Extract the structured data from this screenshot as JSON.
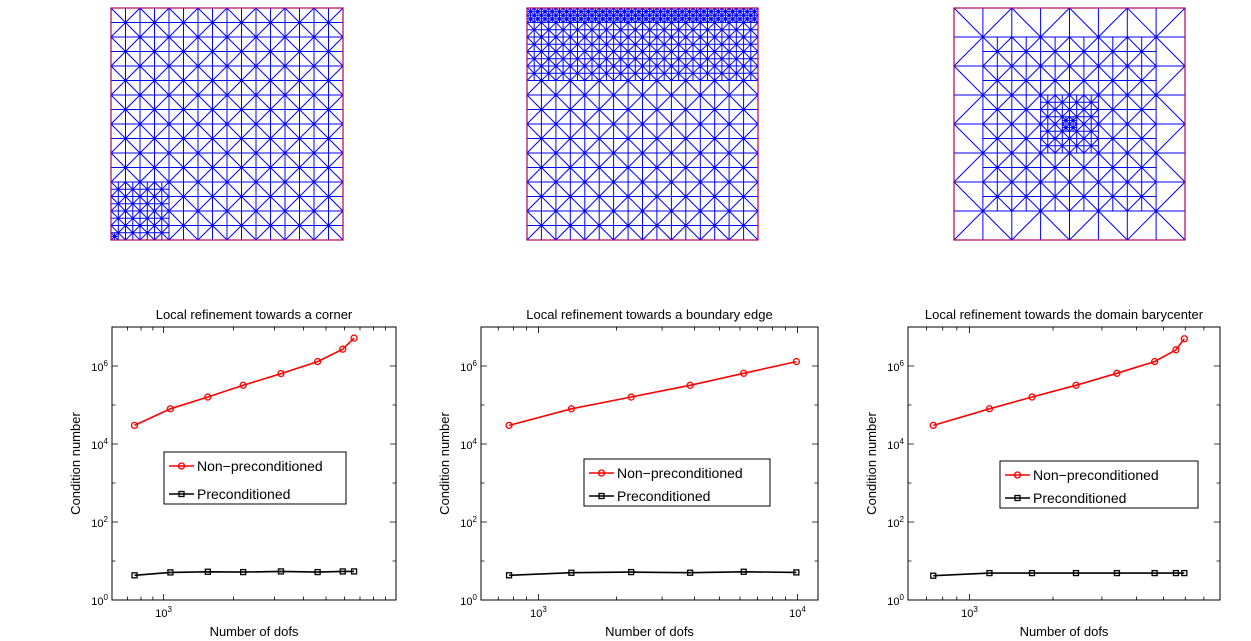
{
  "meshes": [
    {
      "refinement": "corner"
    },
    {
      "refinement": "boundary-edge"
    },
    {
      "refinement": "barycenter"
    }
  ],
  "chart_data": [
    {
      "type": "line",
      "title": "Local refinement towards a corner",
      "xlabel": "Number of dofs",
      "ylabel": "Condition number",
      "xscale": "log",
      "yscale": "log",
      "xlim": [
        600,
        10000
      ],
      "ylim": [
        1,
        10000000
      ],
      "xticks": [
        {
          "value": 1000,
          "base": "10",
          "exp": "3"
        }
      ],
      "yticks": [
        {
          "value": 1,
          "base": "10",
          "exp": "0"
        },
        {
          "value": 100,
          "base": "10",
          "exp": "2"
        },
        {
          "value": 10000,
          "base": "10",
          "exp": "4"
        },
        {
          "value": 1000000,
          "base": "10",
          "exp": "6"
        }
      ],
      "legend_position": "center-right",
      "series": [
        {
          "name": "Non−preconditioned",
          "color": "#ff0000",
          "marker": "circle",
          "x": [
            750,
            1070,
            1550,
            2200,
            3200,
            4600,
            5900,
            6600
          ],
          "y": [
            30000,
            80000,
            160000,
            320000,
            640000,
            1300000,
            2700000,
            5200000
          ]
        },
        {
          "name": "Preconditioned",
          "color": "#000000",
          "marker": "square",
          "x": [
            750,
            1070,
            1550,
            2200,
            3200,
            4600,
            5900,
            6600
          ],
          "y": [
            4.3,
            5.1,
            5.3,
            5.2,
            5.4,
            5.2,
            5.4,
            5.4
          ]
        }
      ]
    },
    {
      "type": "line",
      "title": "Local refinement towards a boundary edge",
      "xlabel": "Number of dofs",
      "ylabel": "Condition number",
      "xscale": "log",
      "yscale": "log",
      "xlim": [
        600,
        12000
      ],
      "ylim": [
        1,
        10000000
      ],
      "xticks": [
        {
          "value": 1000,
          "base": "10",
          "exp": "3"
        },
        {
          "value": 10000,
          "base": "10",
          "exp": "4"
        }
      ],
      "yticks": [
        {
          "value": 1,
          "base": "10",
          "exp": "0"
        },
        {
          "value": 100,
          "base": "10",
          "exp": "2"
        },
        {
          "value": 10000,
          "base": "10",
          "exp": "4"
        },
        {
          "value": 1000000,
          "base": "10",
          "exp": "6"
        }
      ],
      "legend_position": "center-right",
      "series": [
        {
          "name": "Non−preconditioned",
          "color": "#ff0000",
          "marker": "circle",
          "x": [
            770,
            1340,
            2280,
            3850,
            6200,
            9900
          ],
          "y": [
            30000,
            80000,
            160000,
            320000,
            650000,
            1300000
          ]
        },
        {
          "name": "Preconditioned",
          "color": "#000000",
          "marker": "square",
          "x": [
            770,
            1340,
            2280,
            3850,
            6200,
            9900
          ],
          "y": [
            4.3,
            5.0,
            5.2,
            5.0,
            5.3,
            5.1
          ]
        }
      ]
    },
    {
      "type": "line",
      "title": "Local refinement towards the domain barycenter",
      "xlabel": "Number of dofs",
      "ylabel": "Condition number",
      "xscale": "log",
      "yscale": "log",
      "xlim": [
        600,
        8000
      ],
      "ylim": [
        1,
        10000000
      ],
      "xticks": [
        {
          "value": 1000,
          "base": "10",
          "exp": "3"
        }
      ],
      "yticks": [
        {
          "value": 1,
          "base": "10",
          "exp": "0"
        },
        {
          "value": 100,
          "base": "10",
          "exp": "2"
        },
        {
          "value": 10000,
          "base": "10",
          "exp": "4"
        },
        {
          "value": 1000000,
          "base": "10",
          "exp": "6"
        }
      ],
      "legend_position": "center-right",
      "series": [
        {
          "name": "Non−preconditioned",
          "color": "#ff0000",
          "marker": "circle",
          "x": [
            740,
            1180,
            1680,
            2420,
            3400,
            4650,
            5550,
            5950
          ],
          "y": [
            30000,
            80000,
            160000,
            320000,
            650000,
            1300000,
            2600000,
            5000000
          ]
        },
        {
          "name": "Preconditioned",
          "color": "#000000",
          "marker": "square",
          "x": [
            740,
            1180,
            1680,
            2420,
            3400,
            4650,
            5550,
            5950
          ],
          "y": [
            4.2,
            4.9,
            4.9,
            4.9,
            4.9,
            4.9,
            4.9,
            4.9
          ]
        }
      ]
    }
  ]
}
